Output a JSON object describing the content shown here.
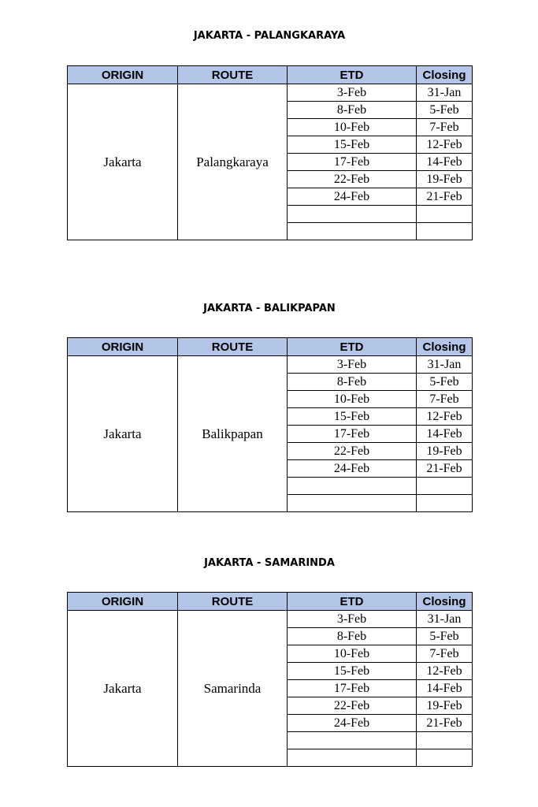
{
  "headers": {
    "origin": "ORIGIN",
    "route": "ROUTE",
    "etd": "ETD",
    "closing": "Closing"
  },
  "header_color": "#b4c6e7",
  "tables": [
    {
      "title": "JAKARTA - PALANGKARAYA",
      "origin": "Jakarta",
      "route": "Palangkaraya",
      "rows": [
        [
          "3-Feb",
          "31-Jan"
        ],
        [
          "8-Feb",
          "5-Feb"
        ],
        [
          "10-Feb",
          "7-Feb"
        ],
        [
          "15-Feb",
          "12-Feb"
        ],
        [
          "17-Feb",
          "14-Feb"
        ],
        [
          "22-Feb",
          "19-Feb"
        ],
        [
          "24-Feb",
          "21-Feb"
        ],
        [
          "",
          ""
        ],
        [
          "",
          ""
        ]
      ]
    },
    {
      "title": "JAKARTA - BALIKPAPAN",
      "origin": "Jakarta",
      "route": "Balikpapan",
      "rows": [
        [
          "3-Feb",
          "31-Jan"
        ],
        [
          "8-Feb",
          "5-Feb"
        ],
        [
          "10-Feb",
          "7-Feb"
        ],
        [
          "15-Feb",
          "12-Feb"
        ],
        [
          "17-Feb",
          "14-Feb"
        ],
        [
          "22-Feb",
          "19-Feb"
        ],
        [
          "24-Feb",
          "21-Feb"
        ],
        [
          "",
          ""
        ],
        [
          "",
          ""
        ]
      ]
    },
    {
      "title": "JAKARTA - SAMARINDA",
      "origin": "Jakarta",
      "route": "Samarinda",
      "rows": [
        [
          "3-Feb",
          "31-Jan"
        ],
        [
          "8-Feb",
          "5-Feb"
        ],
        [
          "10-Feb",
          "7-Feb"
        ],
        [
          "15-Feb",
          "12-Feb"
        ],
        [
          "17-Feb",
          "14-Feb"
        ],
        [
          "22-Feb",
          "19-Feb"
        ],
        [
          "24-Feb",
          "21-Feb"
        ],
        [
          "",
          ""
        ],
        [
          "",
          ""
        ]
      ]
    }
  ]
}
